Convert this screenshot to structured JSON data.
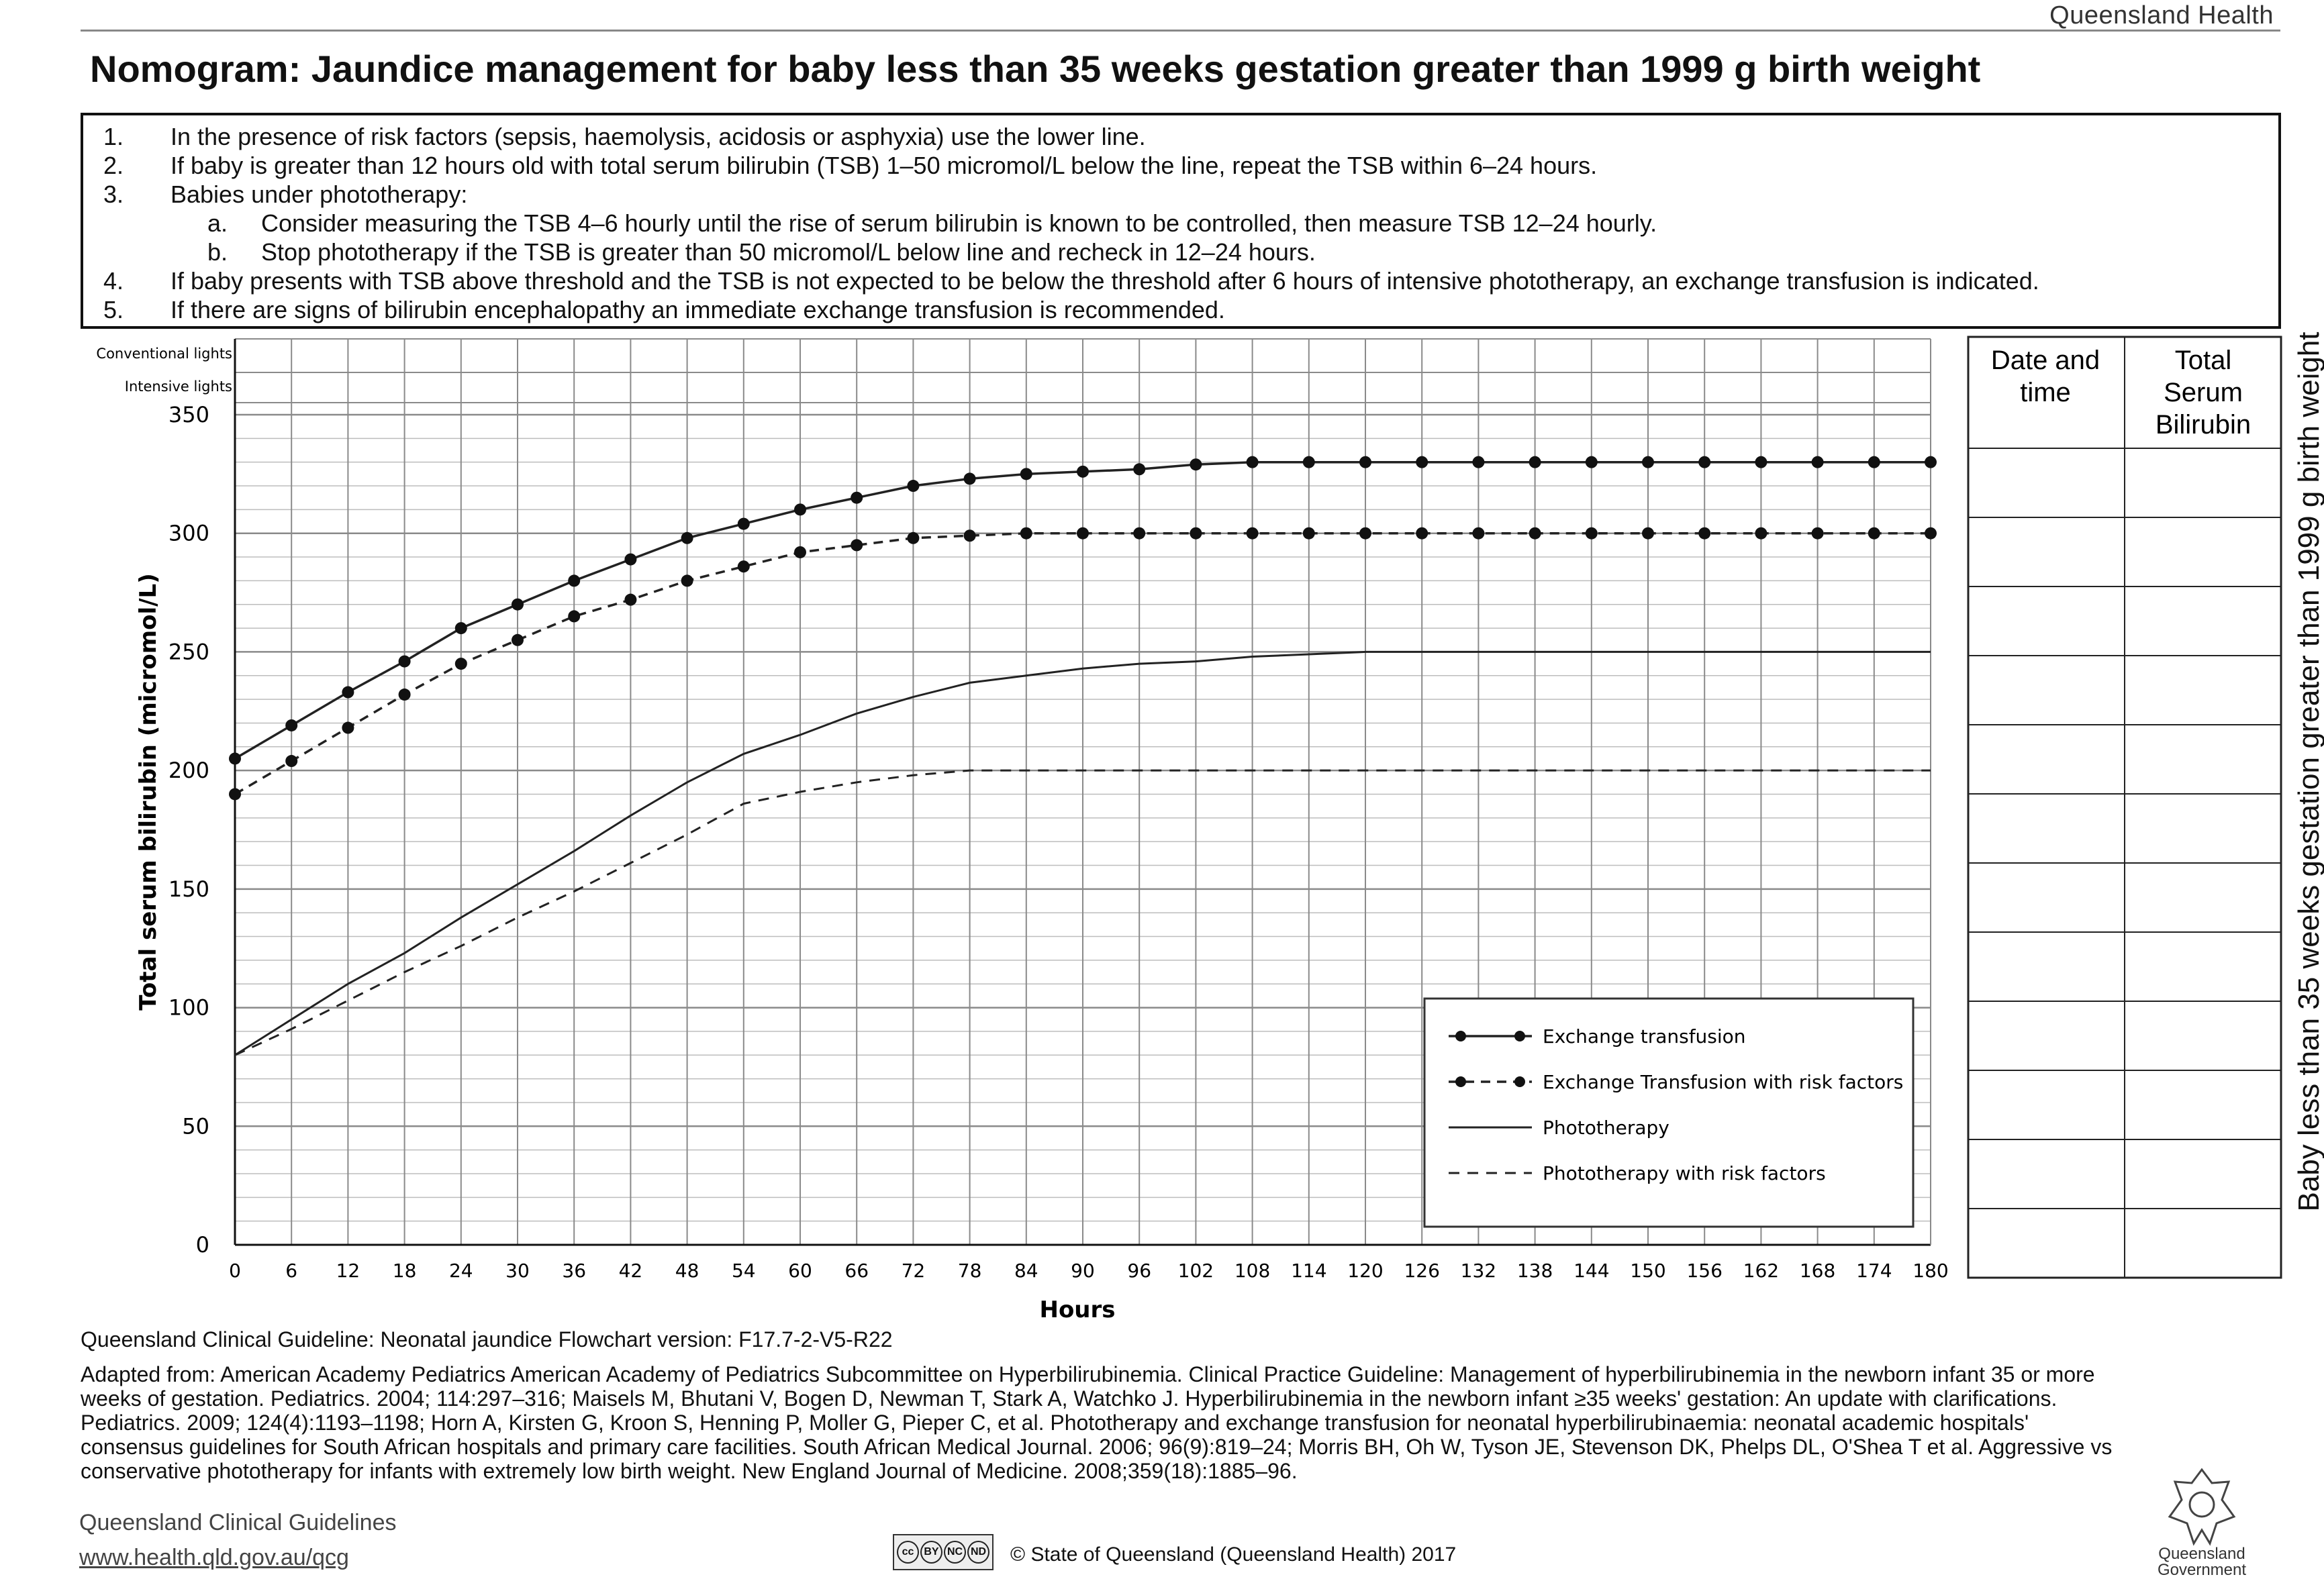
{
  "header": {
    "org": "Queensland Health"
  },
  "title": "Nomogram: Jaundice management for baby less than 35 weeks gestation greater than 1999 g birth weight",
  "instructions": [
    {
      "num": "1.",
      "text": "In the presence of risk factors (sepsis, haemolysis, acidosis or asphyxia) use the lower line."
    },
    {
      "num": "2.",
      "text": "If baby is greater than 12 hours old with total serum bilirubin (TSB) 1–50 micromol/L below the line, repeat the TSB within 6–24 hours."
    },
    {
      "num": "3.",
      "text": "Babies under phototherapy:"
    },
    {
      "num": "a.",
      "text": "Consider measuring the TSB 4–6 hourly until the rise of serum bilirubin is known to be controlled, then measure TSB 12–24 hourly."
    },
    {
      "num": "b.",
      "text": "Stop phototherapy if the TSB is greater than 50 micromol/L below line and recheck in 12–24 hours."
    },
    {
      "num": "4.",
      "text": "If baby presents with TSB above threshold and the TSB is not expected to be below the threshold after 6 hours of intensive phototherapy, an exchange transfusion is indicated."
    },
    {
      "num": "5.",
      "text": "If there are signs of bilirubin encephalopathy an immediate exchange transfusion is recommended."
    }
  ],
  "chart_data": {
    "type": "line",
    "xlabel": "Hours",
    "ylabel": "Total serum bilirubin (micromol/L)",
    "xlim": [
      0,
      180
    ],
    "ylim": [
      0,
      350
    ],
    "xticks": [
      0,
      6,
      12,
      18,
      24,
      30,
      36,
      42,
      48,
      54,
      60,
      66,
      72,
      78,
      84,
      90,
      96,
      102,
      108,
      114,
      120,
      126,
      132,
      138,
      144,
      150,
      156,
      162,
      168,
      174,
      180
    ],
    "yticks": [
      0,
      50,
      100,
      150,
      200,
      250,
      300,
      350
    ],
    "row_labels": [
      "Conventional lights",
      "Intensive lights"
    ],
    "grid": true,
    "legend_position": "bottom-right",
    "series": [
      {
        "name": "Exchange transfusion",
        "style": "solid-dots",
        "points": [
          [
            0,
            205
          ],
          [
            6,
            219
          ],
          [
            12,
            233
          ],
          [
            18,
            246
          ],
          [
            24,
            260
          ],
          [
            30,
            270
          ],
          [
            36,
            280
          ],
          [
            42,
            289
          ],
          [
            48,
            298
          ],
          [
            54,
            304
          ],
          [
            60,
            310
          ],
          [
            66,
            315
          ],
          [
            72,
            320
          ],
          [
            78,
            323
          ],
          [
            84,
            325
          ],
          [
            90,
            326
          ],
          [
            96,
            327
          ],
          [
            102,
            329
          ],
          [
            108,
            330
          ],
          [
            114,
            330
          ],
          [
            120,
            330
          ],
          [
            126,
            330
          ],
          [
            132,
            330
          ],
          [
            138,
            330
          ],
          [
            144,
            330
          ],
          [
            150,
            330
          ],
          [
            156,
            330
          ],
          [
            162,
            330
          ],
          [
            168,
            330
          ],
          [
            174,
            330
          ],
          [
            180,
            330
          ]
        ]
      },
      {
        "name": "Exchange Transfusion with risk factors",
        "style": "dashed-dots",
        "points": [
          [
            0,
            190
          ],
          [
            6,
            204
          ],
          [
            12,
            218
          ],
          [
            18,
            232
          ],
          [
            24,
            245
          ],
          [
            30,
            255
          ],
          [
            36,
            265
          ],
          [
            42,
            272
          ],
          [
            48,
            280
          ],
          [
            54,
            286
          ],
          [
            60,
            292
          ],
          [
            66,
            295
          ],
          [
            72,
            298
          ],
          [
            78,
            299
          ],
          [
            84,
            300
          ],
          [
            90,
            300
          ],
          [
            96,
            300
          ],
          [
            102,
            300
          ],
          [
            108,
            300
          ],
          [
            114,
            300
          ],
          [
            120,
            300
          ],
          [
            126,
            300
          ],
          [
            132,
            300
          ],
          [
            138,
            300
          ],
          [
            144,
            300
          ],
          [
            150,
            300
          ],
          [
            156,
            300
          ],
          [
            162,
            300
          ],
          [
            168,
            300
          ],
          [
            174,
            300
          ],
          [
            180,
            300
          ]
        ]
      },
      {
        "name": "Phototherapy",
        "style": "solid",
        "points": [
          [
            0,
            80
          ],
          [
            6,
            95
          ],
          [
            12,
            110
          ],
          [
            18,
            123
          ],
          [
            24,
            138
          ],
          [
            30,
            152
          ],
          [
            36,
            166
          ],
          [
            42,
            181
          ],
          [
            48,
            195
          ],
          [
            54,
            207
          ],
          [
            60,
            215
          ],
          [
            66,
            224
          ],
          [
            72,
            231
          ],
          [
            78,
            237
          ],
          [
            84,
            240
          ],
          [
            90,
            243
          ],
          [
            96,
            245
          ],
          [
            102,
            246
          ],
          [
            108,
            248
          ],
          [
            114,
            249
          ],
          [
            120,
            250
          ],
          [
            126,
            250
          ],
          [
            132,
            250
          ],
          [
            138,
            250
          ],
          [
            144,
            250
          ],
          [
            150,
            250
          ],
          [
            156,
            250
          ],
          [
            162,
            250
          ],
          [
            168,
            250
          ],
          [
            174,
            250
          ],
          [
            180,
            250
          ]
        ]
      },
      {
        "name": "Phototherapy with risk factors",
        "style": "dashed",
        "points": [
          [
            0,
            80
          ],
          [
            6,
            91
          ],
          [
            12,
            103
          ],
          [
            18,
            115
          ],
          [
            24,
            126
          ],
          [
            30,
            138
          ],
          [
            36,
            149
          ],
          [
            42,
            161
          ],
          [
            48,
            173
          ],
          [
            54,
            186
          ],
          [
            60,
            191
          ],
          [
            66,
            195
          ],
          [
            72,
            198
          ],
          [
            78,
            200
          ],
          [
            84,
            200
          ],
          [
            90,
            200
          ],
          [
            96,
            200
          ],
          [
            102,
            200
          ],
          [
            108,
            200
          ],
          [
            114,
            200
          ],
          [
            120,
            200
          ],
          [
            126,
            200
          ],
          [
            132,
            200
          ],
          [
            138,
            200
          ],
          [
            144,
            200
          ],
          [
            150,
            200
          ],
          [
            156,
            200
          ],
          [
            162,
            200
          ],
          [
            168,
            200
          ],
          [
            174,
            200
          ],
          [
            180,
            200
          ]
        ]
      }
    ]
  },
  "record_table": {
    "headers": [
      "Date and time",
      "Total Serum Bilirubin"
    ],
    "empty_rows": 12
  },
  "side_caption": "Baby less than 35 weeks gestation greater than 1999 g birth weight",
  "footer": {
    "version": "Queensland Clinical Guideline: Neonatal jaundice Flowchart version: F17.7-2-V5-R22",
    "adapted": "Adapted from: American Academy Pediatrics American Academy of Pediatrics Subcommittee on Hyperbilirubinemia. Clinical Practice Guideline: Management of hyperbilirubinemia in the newborn infant 35 or more weeks of gestation. Pediatrics. 2004; 114:297–316; Maisels M, Bhutani V, Bogen D, Newman T, Stark A, Watchko J. Hyperbilirubinemia in the newborn infant ≥35 weeks' gestation: An update with clarifications. Pediatrics. 2009; 124(4):1193–1198; Horn A, Kirsten G, Kroon S, Henning P, Moller G, Pieper C, et al. Phototherapy and exchange transfusion for neonatal hyperbilirubinaemia: neonatal academic hospitals' consensus guidelines for South African hospitals and primary care facilities. South African Medical Journal. 2006; 96(9):819–24; Morris BH, Oh W, Tyson JE, Stevenson DK, Phelps DL, O'Shea T et al. Aggressive vs conservative phototherapy for infants with extremely low birth weight. New England Journal of Medicine. 2008;359(18):1885–96.",
    "qcg_name": "Queensland Clinical Guidelines",
    "qcg_url": "www.health.qld.gov.au/qcg",
    "cc_icons": [
      "cc",
      "BY",
      "NC",
      "ND"
    ],
    "copyright": "© State of Queensland (Queensland Health) 2017",
    "gov_name_1": "Queensland",
    "gov_name_2": "Government"
  }
}
